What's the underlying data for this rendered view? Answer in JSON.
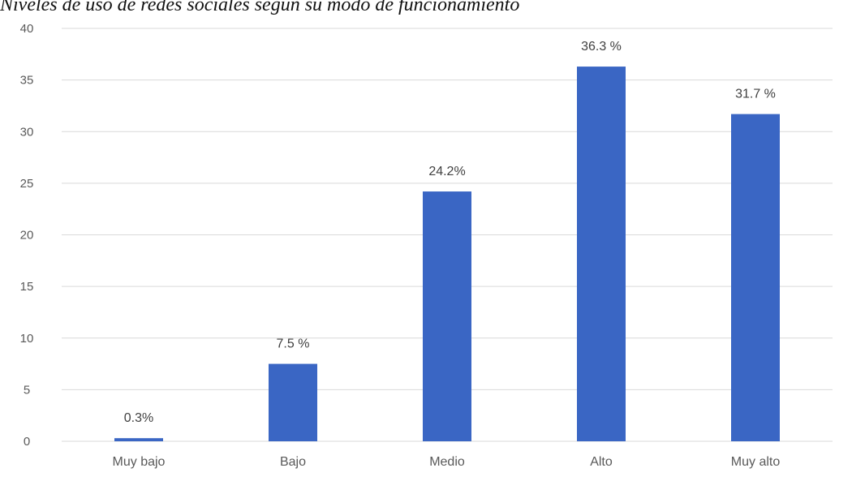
{
  "chart_data": {
    "type": "bar",
    "title": "Niveles de uso de redes sociales según su modo de funcionamiento",
    "categories": [
      "Muy bajo",
      "Bajo",
      "Medio",
      "Alto",
      "Muy alto"
    ],
    "values": [
      0.3,
      7.5,
      24.2,
      36.3,
      31.7
    ],
    "data_labels": [
      "0.3%",
      "7.5 %",
      "24.2%",
      "36.3 %",
      "31.7 %"
    ],
    "yticks": [
      "0",
      "5",
      "10",
      "15",
      "20",
      "25",
      "30",
      "35",
      "40"
    ],
    "ylim": [
      0,
      40
    ],
    "xlabel": "",
    "ylabel": "",
    "grid": true,
    "legend": "none",
    "bar_color": "#3a66c4",
    "gridline_color": "#d9d9d9"
  }
}
